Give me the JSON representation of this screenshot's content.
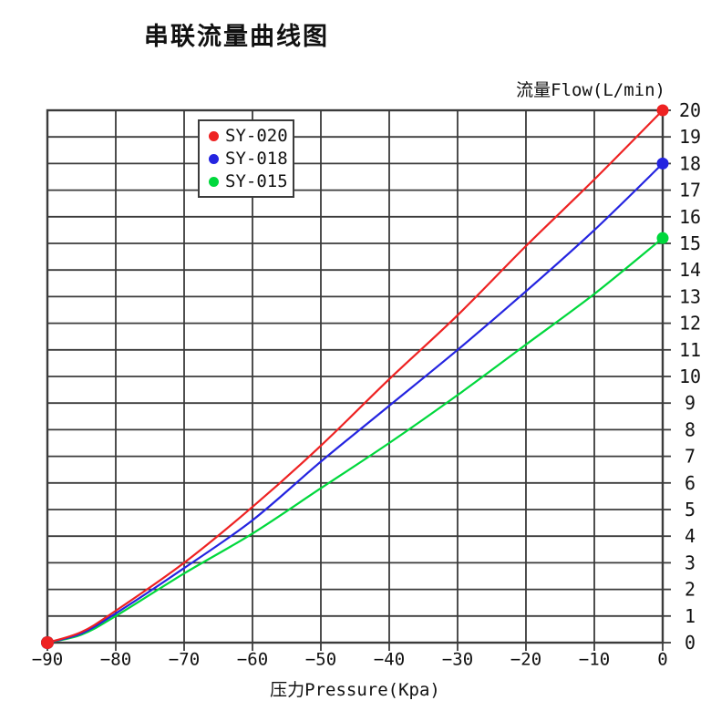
{
  "page": {
    "background": "#ffffff",
    "grid_color": "#3b3b3b",
    "text_color": "#111111"
  },
  "chart_data": {
    "type": "line",
    "title": "串联流量曲线图",
    "xlabel": "压力Pressure(Kpa)",
    "ylabel": "流量Flow(L/min)",
    "xlim": [
      -90,
      0
    ],
    "ylim": [
      0,
      20
    ],
    "grid": true,
    "legend_position": "top-left-inside",
    "x_tick_labels": [
      "−90",
      "−80",
      "−70",
      "−60",
      "−50",
      "−40",
      "−30",
      "−20",
      "−10",
      "0"
    ],
    "x_tick_values": [
      -90,
      -80,
      -70,
      -60,
      -50,
      -40,
      -30,
      -20,
      -10,
      0
    ],
    "y_tick_labels": [
      "0",
      "1",
      "2",
      "3",
      "4",
      "5",
      "6",
      "7",
      "8",
      "9",
      "10",
      "11",
      "12",
      "13",
      "14",
      "15",
      "16",
      "17",
      "18",
      "19",
      "20"
    ],
    "y_tick_values": [
      0,
      1,
      2,
      3,
      4,
      5,
      6,
      7,
      8,
      9,
      10,
      11,
      12,
      13,
      14,
      15,
      16,
      17,
      18,
      19,
      20
    ],
    "x": [
      -90,
      -85,
      -80,
      -70,
      -60,
      -50,
      -40,
      -30,
      -20,
      -10,
      0
    ],
    "series": [
      {
        "name": "SY-020",
        "color": "#ee2222",
        "values": [
          0,
          0.4,
          1.2,
          3.0,
          5.1,
          7.4,
          9.9,
          12.3,
          14.9,
          17.4,
          20
        ]
      },
      {
        "name": "SY-018",
        "color": "#2424e0",
        "values": [
          0,
          0.35,
          1.1,
          2.8,
          4.6,
          6.8,
          8.9,
          11.0,
          13.2,
          15.5,
          18
        ]
      },
      {
        "name": "SY-015",
        "color": "#00d83c",
        "values": [
          0,
          0.3,
          1.0,
          2.6,
          4.1,
          5.8,
          7.5,
          9.3,
          11.2,
          13.1,
          15.2
        ]
      }
    ]
  }
}
